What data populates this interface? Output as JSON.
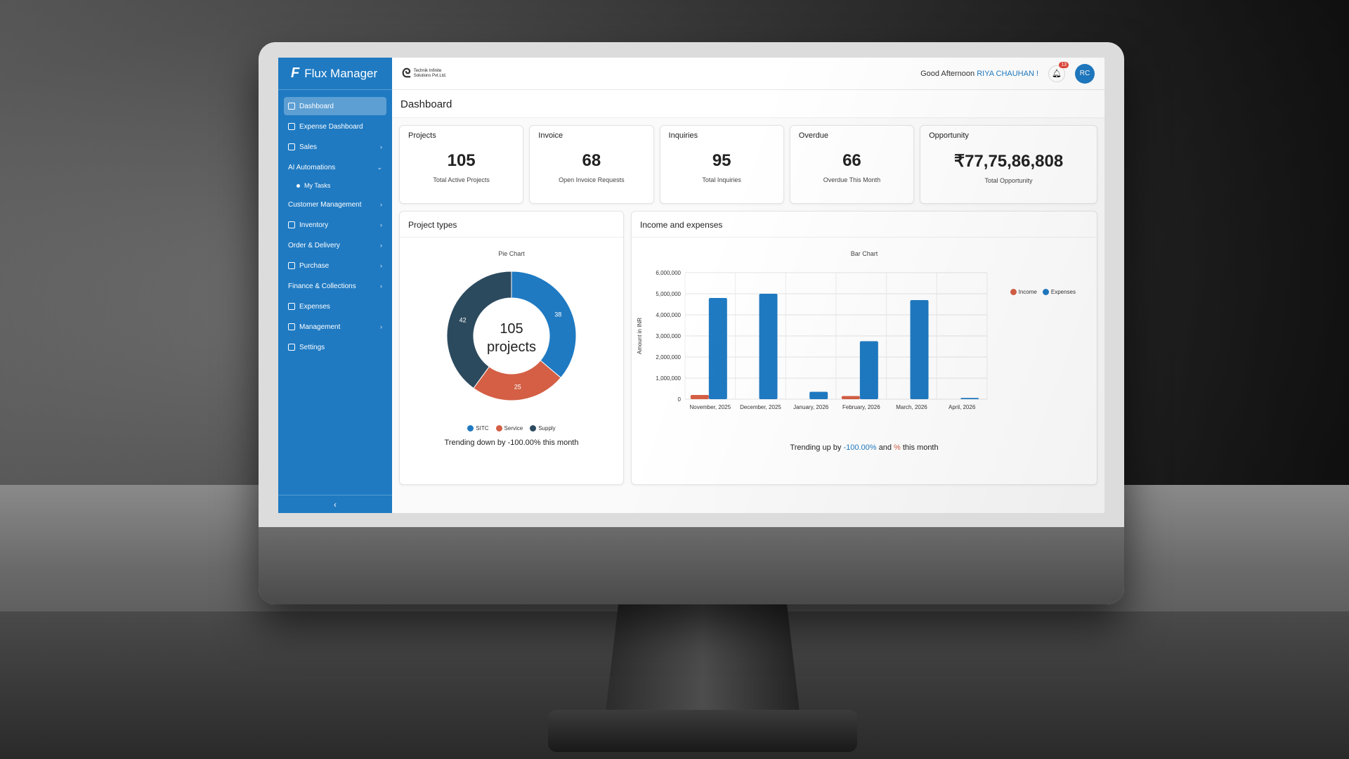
{
  "sidebar": {
    "brand": "Flux Manager",
    "items": [
      {
        "label": "Dashboard",
        "active": true,
        "chevron": ""
      },
      {
        "label": "Expense Dashboard",
        "chevron": ""
      },
      {
        "label": "Sales",
        "chevron": "›"
      },
      {
        "label": "AI Automations",
        "chevron": "⌄"
      },
      {
        "label": "Customer Management",
        "chevron": "›"
      },
      {
        "label": "Inventory",
        "chevron": "›"
      },
      {
        "label": "Order & Delivery",
        "chevron": "›"
      },
      {
        "label": "Purchase",
        "chevron": "›"
      },
      {
        "label": "Finance & Collections",
        "chevron": "›"
      },
      {
        "label": "Expenses",
        "chevron": ""
      },
      {
        "label": "Management",
        "chevron": "›"
      },
      {
        "label": "Settings",
        "chevron": ""
      }
    ],
    "sub_item": "My Tasks",
    "collapse": "‹"
  },
  "header": {
    "company_line1": "Technik Infinite",
    "company_line2": "Solutions Pvt.Ltd.",
    "greeting": "Good Afternoon",
    "user_name": "RIYA CHAUHAN !",
    "notifications": "13",
    "avatar": "RC"
  },
  "page": {
    "title": "Dashboard"
  },
  "kpis": [
    {
      "label": "Projects",
      "value": "105",
      "sub": "Total Active Projects"
    },
    {
      "label": "Invoice",
      "value": "68",
      "sub": "Open Invoice Requests"
    },
    {
      "label": "Inquiries",
      "value": "95",
      "sub": "Total Inquiries"
    },
    {
      "label": "Overdue",
      "value": "66",
      "sub": "Overdue This Month"
    },
    {
      "label": "Opportunity",
      "value": "₹77,75,86,808",
      "sub": "Total Opportunity"
    }
  ],
  "project_types": {
    "title": "Project types",
    "subtitle": "Pie Chart",
    "center_value": "105",
    "center_label": "projects",
    "trend": "Trending down by -100.00% this month"
  },
  "income_expenses": {
    "title": "Income and expenses",
    "subtitle": "Bar Chart",
    "trend_prefix": "Trending up by",
    "trend_value": "-100.00%",
    "trend_mid": "and",
    "trend_pct": "%",
    "trend_suffix": "this month"
  },
  "colors": {
    "primary": "#1f7ac2",
    "income": "#d45f45",
    "supply": "#2c4a5e"
  },
  "chart_data": [
    {
      "type": "pie",
      "subtitle": "Pie Chart",
      "categories": [
        "SITC",
        "Service",
        "Supply"
      ],
      "values": [
        38,
        25,
        42
      ],
      "colors": [
        "#1f7ac2",
        "#d45f45",
        "#2c4a5e"
      ]
    },
    {
      "type": "bar",
      "subtitle": "Bar Chart",
      "categories": [
        "November, 2025",
        "December, 2025",
        "January, 2026",
        "February, 2026",
        "March, 2026",
        "April, 2026"
      ],
      "series": [
        {
          "name": "Income",
          "values": [
            200000,
            0,
            0,
            150000,
            0,
            0
          ],
          "color": "#d45f45"
        },
        {
          "name": "Expenses",
          "values": [
            4800000,
            5000000,
            350000,
            2750000,
            4700000,
            60000
          ],
          "color": "#1f7ac2"
        }
      ],
      "ylabel": "Amount in INR",
      "ylim": [
        0,
        6000000
      ],
      "yticks": [
        "0",
        "1,000,000",
        "2,000,000",
        "3,000,000",
        "4,000,000",
        "5,000,000",
        "6,000,000"
      ],
      "grid": true,
      "legend": "top-right"
    }
  ]
}
